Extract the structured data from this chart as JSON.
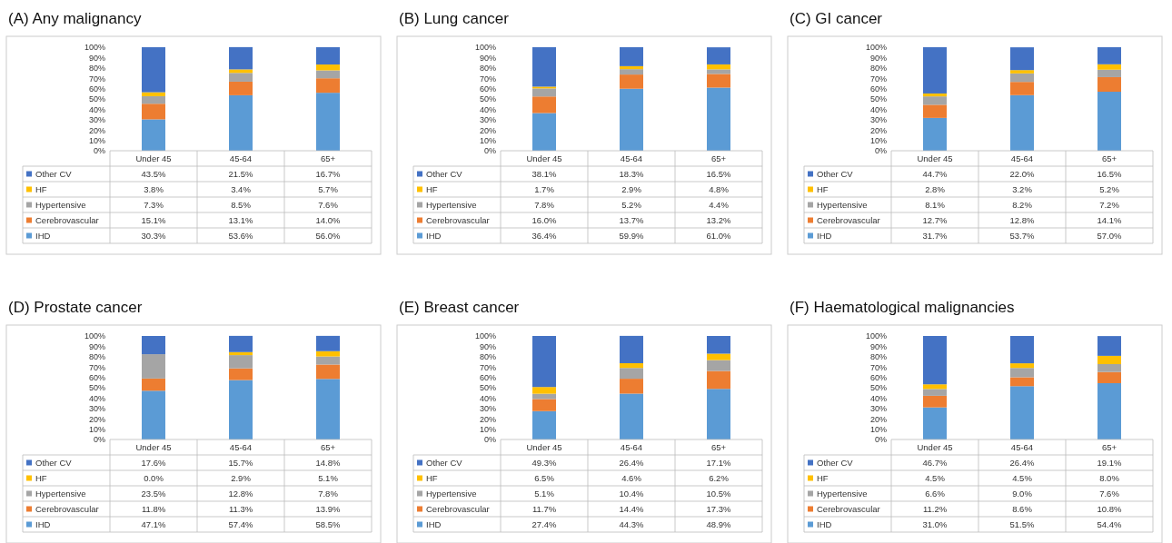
{
  "chart_data": [
    {
      "type": "bar",
      "stacked": true,
      "title": "(A) Any malignancy",
      "categories": [
        "Under 45",
        "45-64",
        "65+"
      ],
      "ylim": [
        0,
        100
      ],
      "yticks": [
        {
          "value": 0,
          "label": "0%"
        },
        {
          "value": 10,
          "label": "10%"
        },
        {
          "value": 20,
          "label": "20%"
        },
        {
          "value": 30,
          "label": "30%"
        },
        {
          "value": 40,
          "label": "40%"
        },
        {
          "value": 50,
          "label": "50%"
        },
        {
          "value": 60,
          "label": "60%"
        },
        {
          "value": 70,
          "label": "70%"
        },
        {
          "value": 80,
          "label": "80%"
        },
        {
          "value": 90,
          "label": "90%"
        },
        {
          "value": 100,
          "label": "100%"
        }
      ],
      "legend": "bottom",
      "series": [
        {
          "name": "IHD",
          "color": "#5b9bd5",
          "values": [
            30.3,
            53.6,
            56.0
          ],
          "value_labels": [
            "30.3%",
            "53.6%",
            "56.0%"
          ]
        },
        {
          "name": "Cerebrovascular",
          "color": "#ed7d31",
          "values": [
            15.1,
            13.1,
            14.0
          ],
          "value_labels": [
            "15.1%",
            "13.1%",
            "14.0%"
          ]
        },
        {
          "name": "Hypertensive",
          "color": "#a5a5a5",
          "values": [
            7.3,
            8.5,
            7.6
          ],
          "value_labels": [
            "7.3%",
            "8.5%",
            "7.6%"
          ]
        },
        {
          "name": "HF",
          "color": "#ffc000",
          "values": [
            3.8,
            3.4,
            5.7
          ],
          "value_labels": [
            "3.8%",
            "3.4%",
            "5.7%"
          ]
        },
        {
          "name": "Other CV",
          "color": "#4472c4",
          "values": [
            43.5,
            21.5,
            16.7
          ],
          "value_labels": [
            "43.5%",
            "21.5%",
            "16.7%"
          ]
        }
      ]
    },
    {
      "type": "bar",
      "stacked": true,
      "title": "(B) Lung cancer",
      "categories": [
        "Under 45",
        "45-64",
        "65+"
      ],
      "ylim": [
        0,
        100
      ],
      "yticks": [
        {
          "value": 0,
          "label": "0%"
        },
        {
          "value": 10,
          "label": "10%"
        },
        {
          "value": 20,
          "label": "20%"
        },
        {
          "value": 30,
          "label": "30%"
        },
        {
          "value": 40,
          "label": "40%"
        },
        {
          "value": 50,
          "label": "50%"
        },
        {
          "value": 60,
          "label": "60%"
        },
        {
          "value": 70,
          "label": "70%"
        },
        {
          "value": 80,
          "label": "80%"
        },
        {
          "value": 90,
          "label": "90%"
        },
        {
          "value": 100,
          "label": "100%"
        }
      ],
      "legend": "bottom",
      "series": [
        {
          "name": "IHD",
          "color": "#5b9bd5",
          "values": [
            36.4,
            59.9,
            61.0
          ],
          "value_labels": [
            "36.4%",
            "59.9%",
            "61.0%"
          ]
        },
        {
          "name": "Cerebrovascular",
          "color": "#ed7d31",
          "values": [
            16.0,
            13.7,
            13.2
          ],
          "value_labels": [
            "16.0%",
            "13.7%",
            "13.2%"
          ]
        },
        {
          "name": "Hypertensive",
          "color": "#a5a5a5",
          "values": [
            7.8,
            5.2,
            4.4
          ],
          "value_labels": [
            "7.8%",
            "5.2%",
            "4.4%"
          ]
        },
        {
          "name": "HF",
          "color": "#ffc000",
          "values": [
            1.7,
            2.9,
            4.8
          ],
          "value_labels": [
            "1.7%",
            "2.9%",
            "4.8%"
          ]
        },
        {
          "name": "Other CV",
          "color": "#4472c4",
          "values": [
            38.1,
            18.3,
            16.5
          ],
          "value_labels": [
            "38.1%",
            "18.3%",
            "16.5%"
          ]
        }
      ]
    },
    {
      "type": "bar",
      "stacked": true,
      "title": "(C) GI cancer",
      "categories": [
        "Under 45",
        "45-64",
        "65+"
      ],
      "ylim": [
        0,
        100
      ],
      "yticks": [
        {
          "value": 0,
          "label": "0%"
        },
        {
          "value": 10,
          "label": "10%"
        },
        {
          "value": 20,
          "label": "20%"
        },
        {
          "value": 30,
          "label": "30%"
        },
        {
          "value": 40,
          "label": "40%"
        },
        {
          "value": 50,
          "label": "50%"
        },
        {
          "value": 60,
          "label": "60%"
        },
        {
          "value": 70,
          "label": "70%"
        },
        {
          "value": 80,
          "label": "80%"
        },
        {
          "value": 90,
          "label": "90%"
        },
        {
          "value": 100,
          "label": "100%"
        }
      ],
      "legend": "bottom",
      "series": [
        {
          "name": "IHD",
          "color": "#5b9bd5",
          "values": [
            31.7,
            53.7,
            57.0
          ],
          "value_labels": [
            "31.7%",
            "53.7%",
            "57.0%"
          ]
        },
        {
          "name": "Cerebrovascular",
          "color": "#ed7d31",
          "values": [
            12.7,
            12.8,
            14.1
          ],
          "value_labels": [
            "12.7%",
            "12.8%",
            "14.1%"
          ]
        },
        {
          "name": "Hypertensive",
          "color": "#a5a5a5",
          "values": [
            8.1,
            8.2,
            7.2
          ],
          "value_labels": [
            "8.1%",
            "8.2%",
            "7.2%"
          ]
        },
        {
          "name": "HF",
          "color": "#ffc000",
          "values": [
            2.8,
            3.2,
            5.2
          ],
          "value_labels": [
            "2.8%",
            "3.2%",
            "5.2%"
          ]
        },
        {
          "name": "Other CV",
          "color": "#4472c4",
          "values": [
            44.7,
            22.0,
            16.5
          ],
          "value_labels": [
            "44.7%",
            "22.0%",
            "16.5%"
          ]
        }
      ]
    },
    {
      "type": "bar",
      "stacked": true,
      "title": "(D) Prostate cancer",
      "categories": [
        "Under 45",
        "45-64",
        "65+"
      ],
      "ylim": [
        0,
        100
      ],
      "yticks": [
        {
          "value": 0,
          "label": "0%"
        },
        {
          "value": 10,
          "label": "10%"
        },
        {
          "value": 20,
          "label": "20%"
        },
        {
          "value": 30,
          "label": "30%"
        },
        {
          "value": 40,
          "label": "40%"
        },
        {
          "value": 50,
          "label": "50%"
        },
        {
          "value": 60,
          "label": "60%"
        },
        {
          "value": 70,
          "label": "70%"
        },
        {
          "value": 80,
          "label": "80%"
        },
        {
          "value": 90,
          "label": "90%"
        },
        {
          "value": 100,
          "label": "100%"
        }
      ],
      "legend": "bottom",
      "series": [
        {
          "name": "IHD",
          "color": "#5b9bd5",
          "values": [
            47.1,
            57.4,
            58.5
          ],
          "value_labels": [
            "47.1%",
            "57.4%",
            "58.5%"
          ]
        },
        {
          "name": "Cerebrovascular",
          "color": "#ed7d31",
          "values": [
            11.8,
            11.3,
            13.9
          ],
          "value_labels": [
            "11.8%",
            "11.3%",
            "13.9%"
          ]
        },
        {
          "name": "Hypertensive",
          "color": "#a5a5a5",
          "values": [
            23.5,
            12.8,
            7.8
          ],
          "value_labels": [
            "23.5%",
            "12.8%",
            "7.8%"
          ]
        },
        {
          "name": "HF",
          "color": "#ffc000",
          "values": [
            0.0,
            2.9,
            5.1
          ],
          "value_labels": [
            "0.0%",
            "2.9%",
            "5.1%"
          ]
        },
        {
          "name": "Other CV",
          "color": "#4472c4",
          "values": [
            17.6,
            15.7,
            14.8
          ],
          "value_labels": [
            "17.6%",
            "15.7%",
            "14.8%"
          ]
        }
      ]
    },
    {
      "type": "bar",
      "stacked": true,
      "title": "(E) Breast cancer",
      "categories": [
        "Under 45",
        "45-64",
        "65+"
      ],
      "ylim": [
        0,
        100
      ],
      "yticks": [
        {
          "value": 0,
          "label": "0%"
        },
        {
          "value": 10,
          "label": "10%"
        },
        {
          "value": 20,
          "label": "20%"
        },
        {
          "value": 30,
          "label": "30%"
        },
        {
          "value": 40,
          "label": "40%"
        },
        {
          "value": 50,
          "label": "50%"
        },
        {
          "value": 60,
          "label": "60%"
        },
        {
          "value": 70,
          "label": "70%"
        },
        {
          "value": 80,
          "label": "80%"
        },
        {
          "value": 90,
          "label": "90%"
        },
        {
          "value": 100,
          "label": "100%"
        }
      ],
      "legend": "bottom",
      "series": [
        {
          "name": "IHD",
          "color": "#5b9bd5",
          "values": [
            27.4,
            44.3,
            48.9
          ],
          "value_labels": [
            "27.4%",
            "44.3%",
            "48.9%"
          ]
        },
        {
          "name": "Cerebrovascular",
          "color": "#ed7d31",
          "values": [
            11.7,
            14.4,
            17.3
          ],
          "value_labels": [
            "11.7%",
            "14.4%",
            "17.3%"
          ]
        },
        {
          "name": "Hypertensive",
          "color": "#a5a5a5",
          "values": [
            5.1,
            10.4,
            10.5
          ],
          "value_labels": [
            "5.1%",
            "10.4%",
            "10.5%"
          ]
        },
        {
          "name": "HF",
          "color": "#ffc000",
          "values": [
            6.5,
            4.6,
            6.2
          ],
          "value_labels": [
            "6.5%",
            "4.6%",
            "6.2%"
          ]
        },
        {
          "name": "Other CV",
          "color": "#4472c4",
          "values": [
            49.3,
            26.4,
            17.1
          ],
          "value_labels": [
            "49.3%",
            "26.4%",
            "17.1%"
          ]
        }
      ]
    },
    {
      "type": "bar",
      "stacked": true,
      "title": "(F) Haematological malignancies",
      "categories": [
        "Under 45",
        "45-64",
        "65+"
      ],
      "ylim": [
        0,
        100
      ],
      "yticks": [
        {
          "value": 0,
          "label": "0%"
        },
        {
          "value": 10,
          "label": "10%"
        },
        {
          "value": 20,
          "label": "20%"
        },
        {
          "value": 30,
          "label": "30%"
        },
        {
          "value": 40,
          "label": "40%"
        },
        {
          "value": 50,
          "label": "50%"
        },
        {
          "value": 60,
          "label": "60%"
        },
        {
          "value": 70,
          "label": "70%"
        },
        {
          "value": 80,
          "label": "80%"
        },
        {
          "value": 90,
          "label": "90%"
        },
        {
          "value": 100,
          "label": "100%"
        }
      ],
      "legend": "bottom",
      "series": [
        {
          "name": "IHD",
          "color": "#5b9bd5",
          "values": [
            31.0,
            51.5,
            54.4
          ],
          "value_labels": [
            "31.0%",
            "51.5%",
            "54.4%"
          ]
        },
        {
          "name": "Cerebrovascular",
          "color": "#ed7d31",
          "values": [
            11.2,
            8.6,
            10.8
          ],
          "value_labels": [
            "11.2%",
            "8.6%",
            "10.8%"
          ]
        },
        {
          "name": "Hypertensive",
          "color": "#a5a5a5",
          "values": [
            6.6,
            9.0,
            7.6
          ],
          "value_labels": [
            "6.6%",
            "9.0%",
            "7.6%"
          ]
        },
        {
          "name": "HF",
          "color": "#ffc000",
          "values": [
            4.5,
            4.5,
            8.0
          ],
          "value_labels": [
            "4.5%",
            "4.5%",
            "8.0%"
          ]
        },
        {
          "name": "Other CV",
          "color": "#4472c4",
          "values": [
            46.7,
            26.4,
            19.1
          ],
          "value_labels": [
            "46.7%",
            "26.4%",
            "19.1%"
          ]
        }
      ]
    }
  ]
}
